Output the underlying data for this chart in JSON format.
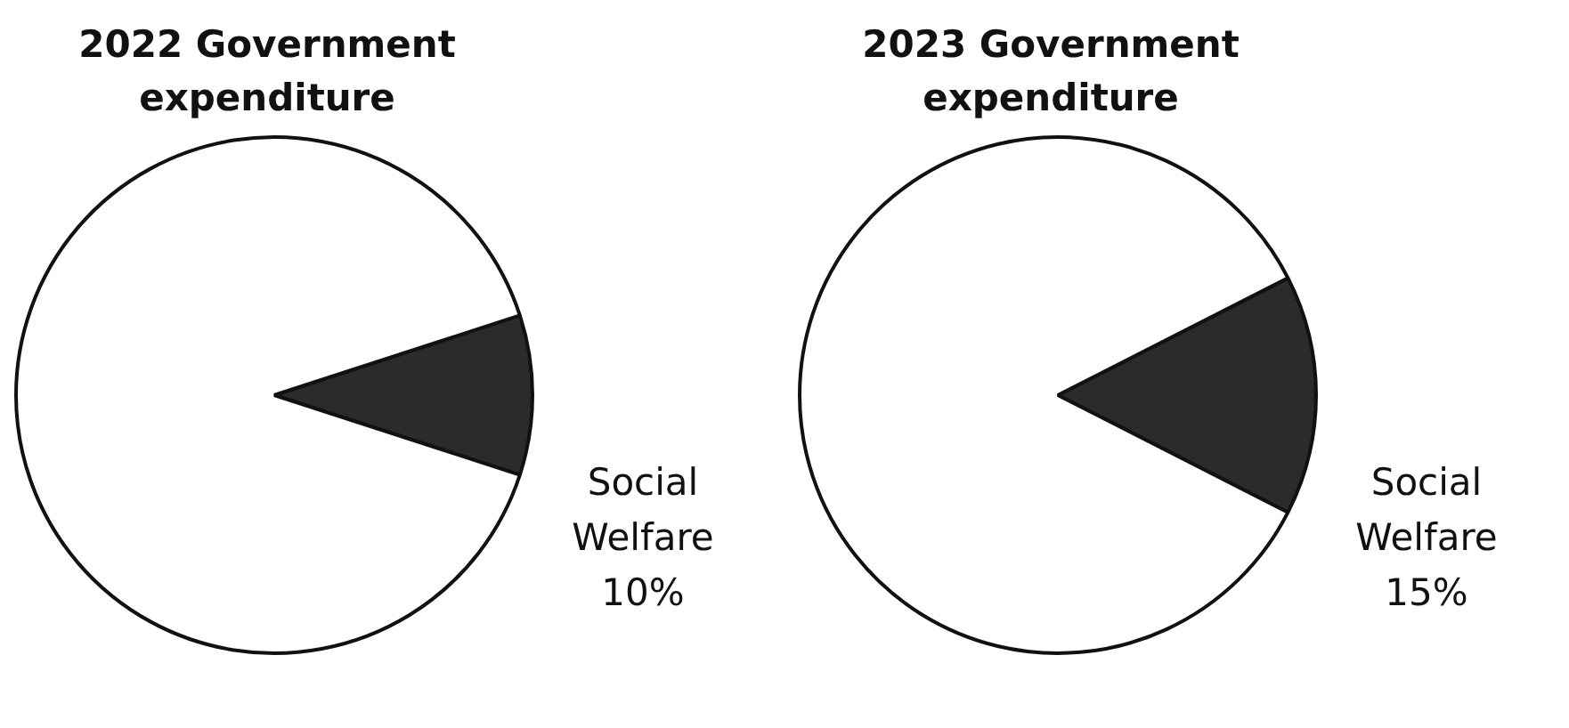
{
  "chart_data": [
    {
      "type": "pie",
      "title": "2022 Government expenditure",
      "categories": [
        "Social Welfare",
        null
      ],
      "values": [
        10,
        90
      ],
      "colors": [
        "#2b2b2b",
        "#ffffff"
      ],
      "value_labels": [
        "10%",
        null
      ]
    },
    {
      "type": "pie",
      "title": "2023 Government expenditure",
      "categories": [
        "Social Welfare",
        null
      ],
      "values": [
        15,
        85
      ],
      "colors": [
        "#2b2b2b",
        "#ffffff"
      ],
      "value_labels": [
        "15%",
        null
      ]
    }
  ]
}
